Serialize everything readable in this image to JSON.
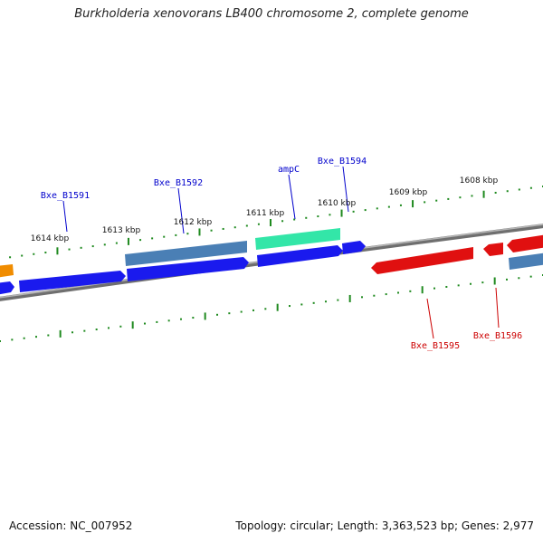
{
  "title": "Burkholderia xenovorans LB400 chromosome 2, complete genome",
  "footer": {
    "accession": "Accession: NC_007952",
    "summary": "Topology: circular; Length: 3,363,523 bp; Genes: 2,977"
  },
  "colors": {
    "backbone": "#808080",
    "tick": "#1f8a1f",
    "forward_cds": "#1a1aee",
    "forward_alt": "#4a7fb5",
    "forward_highlight": "#33e6a8",
    "reverse_cds": "#e01010",
    "reverse_alt": "#4a7fb5",
    "other": "#f08c00",
    "label_forward": "#0000cc",
    "label_reverse": "#cc0000"
  },
  "ticks": {
    "upper": [
      "1614 kbp",
      "1613 kbp",
      "1612 kbp",
      "1611 kbp",
      "1610 kbp",
      "1609 kbp",
      "1608 kbp"
    ]
  },
  "gene_labels": {
    "forward": [
      "Bxe_B1591",
      "Bxe_B1592",
      "ampC",
      "Bxe_B1594"
    ],
    "reverse": [
      "Bxe_B1595",
      "Bxe_B1596"
    ]
  }
}
